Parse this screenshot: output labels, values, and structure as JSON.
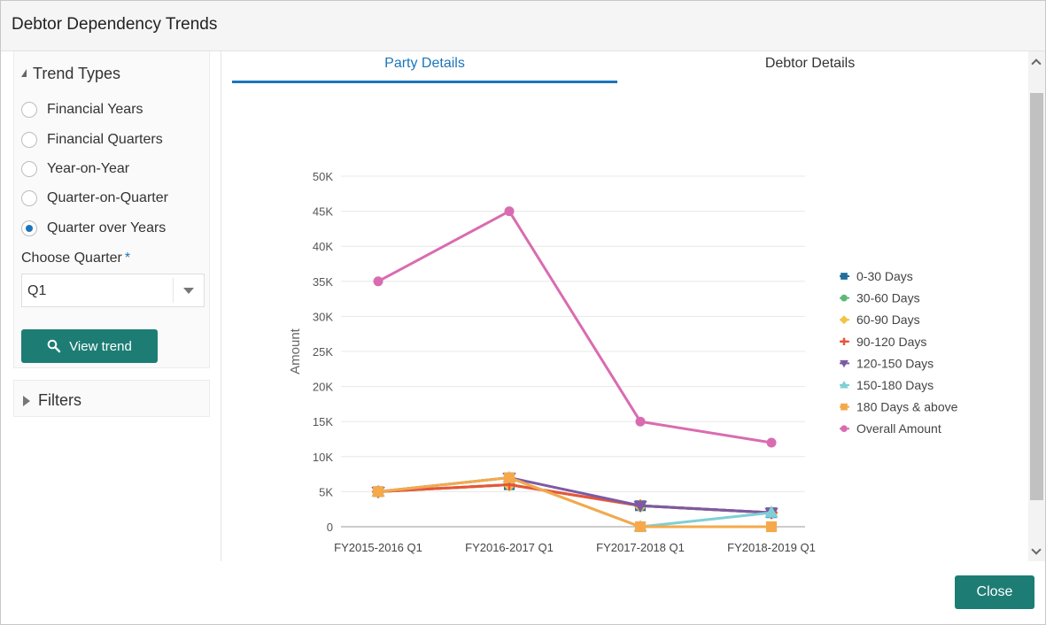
{
  "window": {
    "title": "Debtor Dependency Trends"
  },
  "trend_types": {
    "heading": "Trend Types",
    "options": [
      {
        "label": "Financial Years",
        "checked": false
      },
      {
        "label": "Financial Quarters",
        "checked": false
      },
      {
        "label": "Year-on-Year",
        "checked": false
      },
      {
        "label": "Quarter-on-Quarter",
        "checked": false
      },
      {
        "label": "Quarter over Years",
        "checked": true
      }
    ],
    "choose_quarter_label": "Choose Quarter",
    "required_mark": "*",
    "quarter_value": "Q1",
    "view_trend_label": "View trend"
  },
  "filters": {
    "label": "Filters"
  },
  "tabs": [
    {
      "label": "Party Details",
      "active": true
    },
    {
      "label": "Debtor Details",
      "active": false
    }
  ],
  "footer": {
    "close_label": "Close"
  },
  "colors": {
    "accent": "#1b75bb",
    "button": "#1d7d74"
  },
  "chart_data": {
    "type": "line",
    "ylabel": "Amount",
    "ylim": [
      0,
      50000
    ],
    "yticks": [
      "0",
      "5K",
      "10K",
      "15K",
      "20K",
      "25K",
      "30K",
      "35K",
      "40K",
      "45K",
      "50K"
    ],
    "categories": [
      "FY2015-2016 Q1",
      "FY2016-2017 Q1",
      "FY2017-2018 Q1",
      "FY2018-2019 Q1"
    ],
    "grid": true,
    "legend_position": "right",
    "series": [
      {
        "name": "0-30 Days",
        "color": "#1f6e9c",
        "marker": "square",
        "values": [
          5000,
          6000,
          3000,
          2000
        ]
      },
      {
        "name": "30-60 Days",
        "color": "#5fb87a",
        "marker": "circle",
        "values": [
          5000,
          6000,
          3000,
          2000
        ]
      },
      {
        "name": "60-90 Days",
        "color": "#f2c440",
        "marker": "diamond",
        "values": [
          5000,
          6000,
          3000,
          2000
        ]
      },
      {
        "name": "90-120 Days",
        "color": "#e8543a",
        "marker": "cross",
        "values": [
          5000,
          6000,
          3000,
          2000
        ]
      },
      {
        "name": "120-150 Days",
        "color": "#7b5aa6",
        "marker": "triangle-down",
        "values": [
          5000,
          7000,
          3000,
          2000
        ]
      },
      {
        "name": "150-180 Days",
        "color": "#7fcfd6",
        "marker": "triangle",
        "values": [
          5000,
          7000,
          0,
          2000
        ]
      },
      {
        "name": "180 Days & above",
        "color": "#f5a94a",
        "marker": "square",
        "values": [
          5000,
          7000,
          0,
          0
        ]
      },
      {
        "name": "Overall Amount",
        "color": "#d96cb0",
        "marker": "circle",
        "values": [
          35000,
          45000,
          15000,
          12000
        ]
      }
    ]
  }
}
